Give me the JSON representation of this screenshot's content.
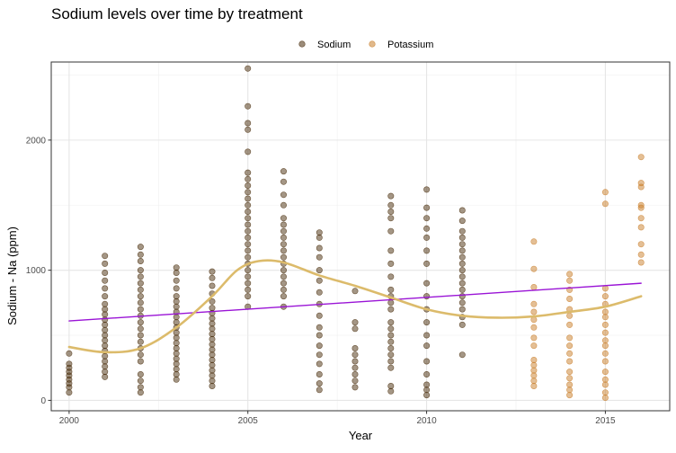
{
  "chart_data": {
    "type": "scatter",
    "title": "Sodium levels over time by treatment",
    "xlabel": "Year",
    "ylabel": "Sodium - Na (ppm)",
    "xlim": [
      1999.5,
      2016.8
    ],
    "ylim": [
      -80,
      2600
    ],
    "x_ticks": [
      2000,
      2005,
      2010,
      2015
    ],
    "y_ticks": [
      0,
      1000,
      2000
    ],
    "grid": true,
    "legend_position": "top",
    "legend": [
      {
        "name": "Sodium",
        "color": "#4a2d0c"
      },
      {
        "name": "Potassium",
        "color": "#c97f2c"
      }
    ],
    "series": [
      {
        "name": "Sodium",
        "color": "#4a2d0c",
        "points": [
          [
            2000,
            60
          ],
          [
            2000,
            100
          ],
          [
            2000,
            130
          ],
          [
            2000,
            160
          ],
          [
            2000,
            190
          ],
          [
            2000,
            220
          ],
          [
            2000,
            250
          ],
          [
            2000,
            280
          ],
          [
            2000,
            360
          ],
          [
            2001,
            180
          ],
          [
            2001,
            220
          ],
          [
            2001,
            260
          ],
          [
            2001,
            300
          ],
          [
            2001,
            340
          ],
          [
            2001,
            380
          ],
          [
            2001,
            420
          ],
          [
            2001,
            460
          ],
          [
            2001,
            500
          ],
          [
            2001,
            540
          ],
          [
            2001,
            580
          ],
          [
            2001,
            620
          ],
          [
            2001,
            660
          ],
          [
            2001,
            700
          ],
          [
            2001,
            740
          ],
          [
            2001,
            800
          ],
          [
            2001,
            860
          ],
          [
            2001,
            920
          ],
          [
            2001,
            980
          ],
          [
            2001,
            1050
          ],
          [
            2001,
            1110
          ],
          [
            2002,
            60
          ],
          [
            2002,
            100
          ],
          [
            2002,
            150
          ],
          [
            2002,
            200
          ],
          [
            2002,
            300
          ],
          [
            2002,
            350
          ],
          [
            2002,
            400
          ],
          [
            2002,
            450
          ],
          [
            2002,
            500
          ],
          [
            2002,
            550
          ],
          [
            2002,
            600
          ],
          [
            2002,
            650
          ],
          [
            2002,
            700
          ],
          [
            2002,
            750
          ],
          [
            2002,
            800
          ],
          [
            2002,
            850
          ],
          [
            2002,
            900
          ],
          [
            2002,
            950
          ],
          [
            2002,
            1000
          ],
          [
            2002,
            1070
          ],
          [
            2002,
            1120
          ],
          [
            2002,
            1180
          ],
          [
            2003,
            160
          ],
          [
            2003,
            200
          ],
          [
            2003,
            240
          ],
          [
            2003,
            280
          ],
          [
            2003,
            320
          ],
          [
            2003,
            360
          ],
          [
            2003,
            400
          ],
          [
            2003,
            440
          ],
          [
            2003,
            480
          ],
          [
            2003,
            520
          ],
          [
            2003,
            560
          ],
          [
            2003,
            600
          ],
          [
            2003,
            640
          ],
          [
            2003,
            680
          ],
          [
            2003,
            720
          ],
          [
            2003,
            760
          ],
          [
            2003,
            800
          ],
          [
            2003,
            860
          ],
          [
            2003,
            920
          ],
          [
            2003,
            980
          ],
          [
            2003,
            1020
          ],
          [
            2004,
            110
          ],
          [
            2004,
            150
          ],
          [
            2004,
            190
          ],
          [
            2004,
            230
          ],
          [
            2004,
            270
          ],
          [
            2004,
            310
          ],
          [
            2004,
            350
          ],
          [
            2004,
            390
          ],
          [
            2004,
            430
          ],
          [
            2004,
            470
          ],
          [
            2004,
            510
          ],
          [
            2004,
            550
          ],
          [
            2004,
            590
          ],
          [
            2004,
            630
          ],
          [
            2004,
            670
          ],
          [
            2004,
            710
          ],
          [
            2004,
            760
          ],
          [
            2004,
            820
          ],
          [
            2004,
            880
          ],
          [
            2004,
            940
          ],
          [
            2004,
            990
          ],
          [
            2005,
            720
          ],
          [
            2005,
            800
          ],
          [
            2005,
            850
          ],
          [
            2005,
            900
          ],
          [
            2005,
            950
          ],
          [
            2005,
            1000
          ],
          [
            2005,
            1050
          ],
          [
            2005,
            1100
          ],
          [
            2005,
            1150
          ],
          [
            2005,
            1200
          ],
          [
            2005,
            1250
          ],
          [
            2005,
            1300
          ],
          [
            2005,
            1350
          ],
          [
            2005,
            1400
          ],
          [
            2005,
            1450
          ],
          [
            2005,
            1500
          ],
          [
            2005,
            1550
          ],
          [
            2005,
            1600
          ],
          [
            2005,
            1650
          ],
          [
            2005,
            1700
          ],
          [
            2005,
            1750
          ],
          [
            2005,
            1910
          ],
          [
            2005,
            2080
          ],
          [
            2005,
            2130
          ],
          [
            2005,
            2260
          ],
          [
            2005,
            2550
          ],
          [
            2006,
            720
          ],
          [
            2006,
            800
          ],
          [
            2006,
            850
          ],
          [
            2006,
            900
          ],
          [
            2006,
            950
          ],
          [
            2006,
            1000
          ],
          [
            2006,
            1050
          ],
          [
            2006,
            1100
          ],
          [
            2006,
            1150
          ],
          [
            2006,
            1200
          ],
          [
            2006,
            1250
          ],
          [
            2006,
            1300
          ],
          [
            2006,
            1350
          ],
          [
            2006,
            1400
          ],
          [
            2006,
            1500
          ],
          [
            2006,
            1580
          ],
          [
            2006,
            1680
          ],
          [
            2006,
            1760
          ],
          [
            2007,
            80
          ],
          [
            2007,
            130
          ],
          [
            2007,
            200
          ],
          [
            2007,
            280
          ],
          [
            2007,
            350
          ],
          [
            2007,
            420
          ],
          [
            2007,
            500
          ],
          [
            2007,
            560
          ],
          [
            2007,
            650
          ],
          [
            2007,
            740
          ],
          [
            2007,
            830
          ],
          [
            2007,
            920
          ],
          [
            2007,
            1000
          ],
          [
            2007,
            1100
          ],
          [
            2007,
            1170
          ],
          [
            2007,
            1250
          ],
          [
            2007,
            1290
          ],
          [
            2008,
            100
          ],
          [
            2008,
            150
          ],
          [
            2008,
            200
          ],
          [
            2008,
            250
          ],
          [
            2008,
            300
          ],
          [
            2008,
            350
          ],
          [
            2008,
            400
          ],
          [
            2008,
            550
          ],
          [
            2008,
            600
          ],
          [
            2008,
            840
          ],
          [
            2009,
            70
          ],
          [
            2009,
            110
          ],
          [
            2009,
            250
          ],
          [
            2009,
            300
          ],
          [
            2009,
            350
          ],
          [
            2009,
            400
          ],
          [
            2009,
            450
          ],
          [
            2009,
            500
          ],
          [
            2009,
            550
          ],
          [
            2009,
            600
          ],
          [
            2009,
            700
          ],
          [
            2009,
            750
          ],
          [
            2009,
            800
          ],
          [
            2009,
            850
          ],
          [
            2009,
            950
          ],
          [
            2009,
            1050
          ],
          [
            2009,
            1150
          ],
          [
            2009,
            1300
          ],
          [
            2009,
            1400
          ],
          [
            2009,
            1450
          ],
          [
            2009,
            1500
          ],
          [
            2009,
            1570
          ],
          [
            2010,
            40
          ],
          [
            2010,
            80
          ],
          [
            2010,
            120
          ],
          [
            2010,
            200
          ],
          [
            2010,
            300
          ],
          [
            2010,
            420
          ],
          [
            2010,
            500
          ],
          [
            2010,
            600
          ],
          [
            2010,
            700
          ],
          [
            2010,
            800
          ],
          [
            2010,
            900
          ],
          [
            2010,
            1050
          ],
          [
            2010,
            1150
          ],
          [
            2010,
            1250
          ],
          [
            2010,
            1320
          ],
          [
            2010,
            1400
          ],
          [
            2010,
            1480
          ],
          [
            2010,
            1620
          ],
          [
            2011,
            350
          ],
          [
            2011,
            580
          ],
          [
            2011,
            640
          ],
          [
            2011,
            700
          ],
          [
            2011,
            750
          ],
          [
            2011,
            800
          ],
          [
            2011,
            850
          ],
          [
            2011,
            900
          ],
          [
            2011,
            950
          ],
          [
            2011,
            1000
          ],
          [
            2011,
            1050
          ],
          [
            2011,
            1100
          ],
          [
            2011,
            1150
          ],
          [
            2011,
            1200
          ],
          [
            2011,
            1250
          ],
          [
            2011,
            1300
          ],
          [
            2011,
            1380
          ],
          [
            2011,
            1460
          ]
        ]
      },
      {
        "name": "Potassium",
        "color": "#c97f2c",
        "points": [
          [
            2013,
            110
          ],
          [
            2013,
            150
          ],
          [
            2013,
            190
          ],
          [
            2013,
            230
          ],
          [
            2013,
            270
          ],
          [
            2013,
            310
          ],
          [
            2013,
            420
          ],
          [
            2013,
            480
          ],
          [
            2013,
            560
          ],
          [
            2013,
            620
          ],
          [
            2013,
            680
          ],
          [
            2013,
            740
          ],
          [
            2013,
            870
          ],
          [
            2013,
            1010
          ],
          [
            2013,
            1220
          ],
          [
            2014,
            40
          ],
          [
            2014,
            80
          ],
          [
            2014,
            120
          ],
          [
            2014,
            170
          ],
          [
            2014,
            220
          ],
          [
            2014,
            300
          ],
          [
            2014,
            360
          ],
          [
            2014,
            420
          ],
          [
            2014,
            480
          ],
          [
            2014,
            580
          ],
          [
            2014,
            650
          ],
          [
            2014,
            700
          ],
          [
            2014,
            780
          ],
          [
            2014,
            850
          ],
          [
            2014,
            920
          ],
          [
            2014,
            970
          ],
          [
            2015,
            20
          ],
          [
            2015,
            60
          ],
          [
            2015,
            120
          ],
          [
            2015,
            160
          ],
          [
            2015,
            220
          ],
          [
            2015,
            300
          ],
          [
            2015,
            360
          ],
          [
            2015,
            420
          ],
          [
            2015,
            460
          ],
          [
            2015,
            520
          ],
          [
            2015,
            580
          ],
          [
            2015,
            640
          ],
          [
            2015,
            680
          ],
          [
            2015,
            740
          ],
          [
            2015,
            800
          ],
          [
            2015,
            860
          ],
          [
            2015,
            1510
          ],
          [
            2015,
            1600
          ],
          [
            2016,
            1060
          ],
          [
            2016,
            1120
          ],
          [
            2016,
            1200
          ],
          [
            2016,
            1330
          ],
          [
            2016,
            1400
          ],
          [
            2016,
            1480
          ],
          [
            2016,
            1500
          ],
          [
            2016,
            1640
          ],
          [
            2016,
            1670
          ],
          [
            2016,
            1870
          ]
        ]
      }
    ],
    "trend_lines": [
      {
        "kind": "linear",
        "color": "#9a14d6",
        "points": [
          [
            2000,
            610
          ],
          [
            2016,
            900
          ]
        ]
      },
      {
        "kind": "smooth",
        "color": "#dcbb6b",
        "points": [
          [
            2000,
            410
          ],
          [
            2001,
            370
          ],
          [
            2002,
            400
          ],
          [
            2003,
            560
          ],
          [
            2004,
            800
          ],
          [
            2004.7,
            1000
          ],
          [
            2005.3,
            1070
          ],
          [
            2006,
            1060
          ],
          [
            2007,
            960
          ],
          [
            2008,
            880
          ],
          [
            2009,
            790
          ],
          [
            2010,
            700
          ],
          [
            2011,
            650
          ],
          [
            2012,
            635
          ],
          [
            2013,
            645
          ],
          [
            2014,
            680
          ],
          [
            2015,
            720
          ],
          [
            2016,
            800
          ]
        ]
      }
    ]
  }
}
